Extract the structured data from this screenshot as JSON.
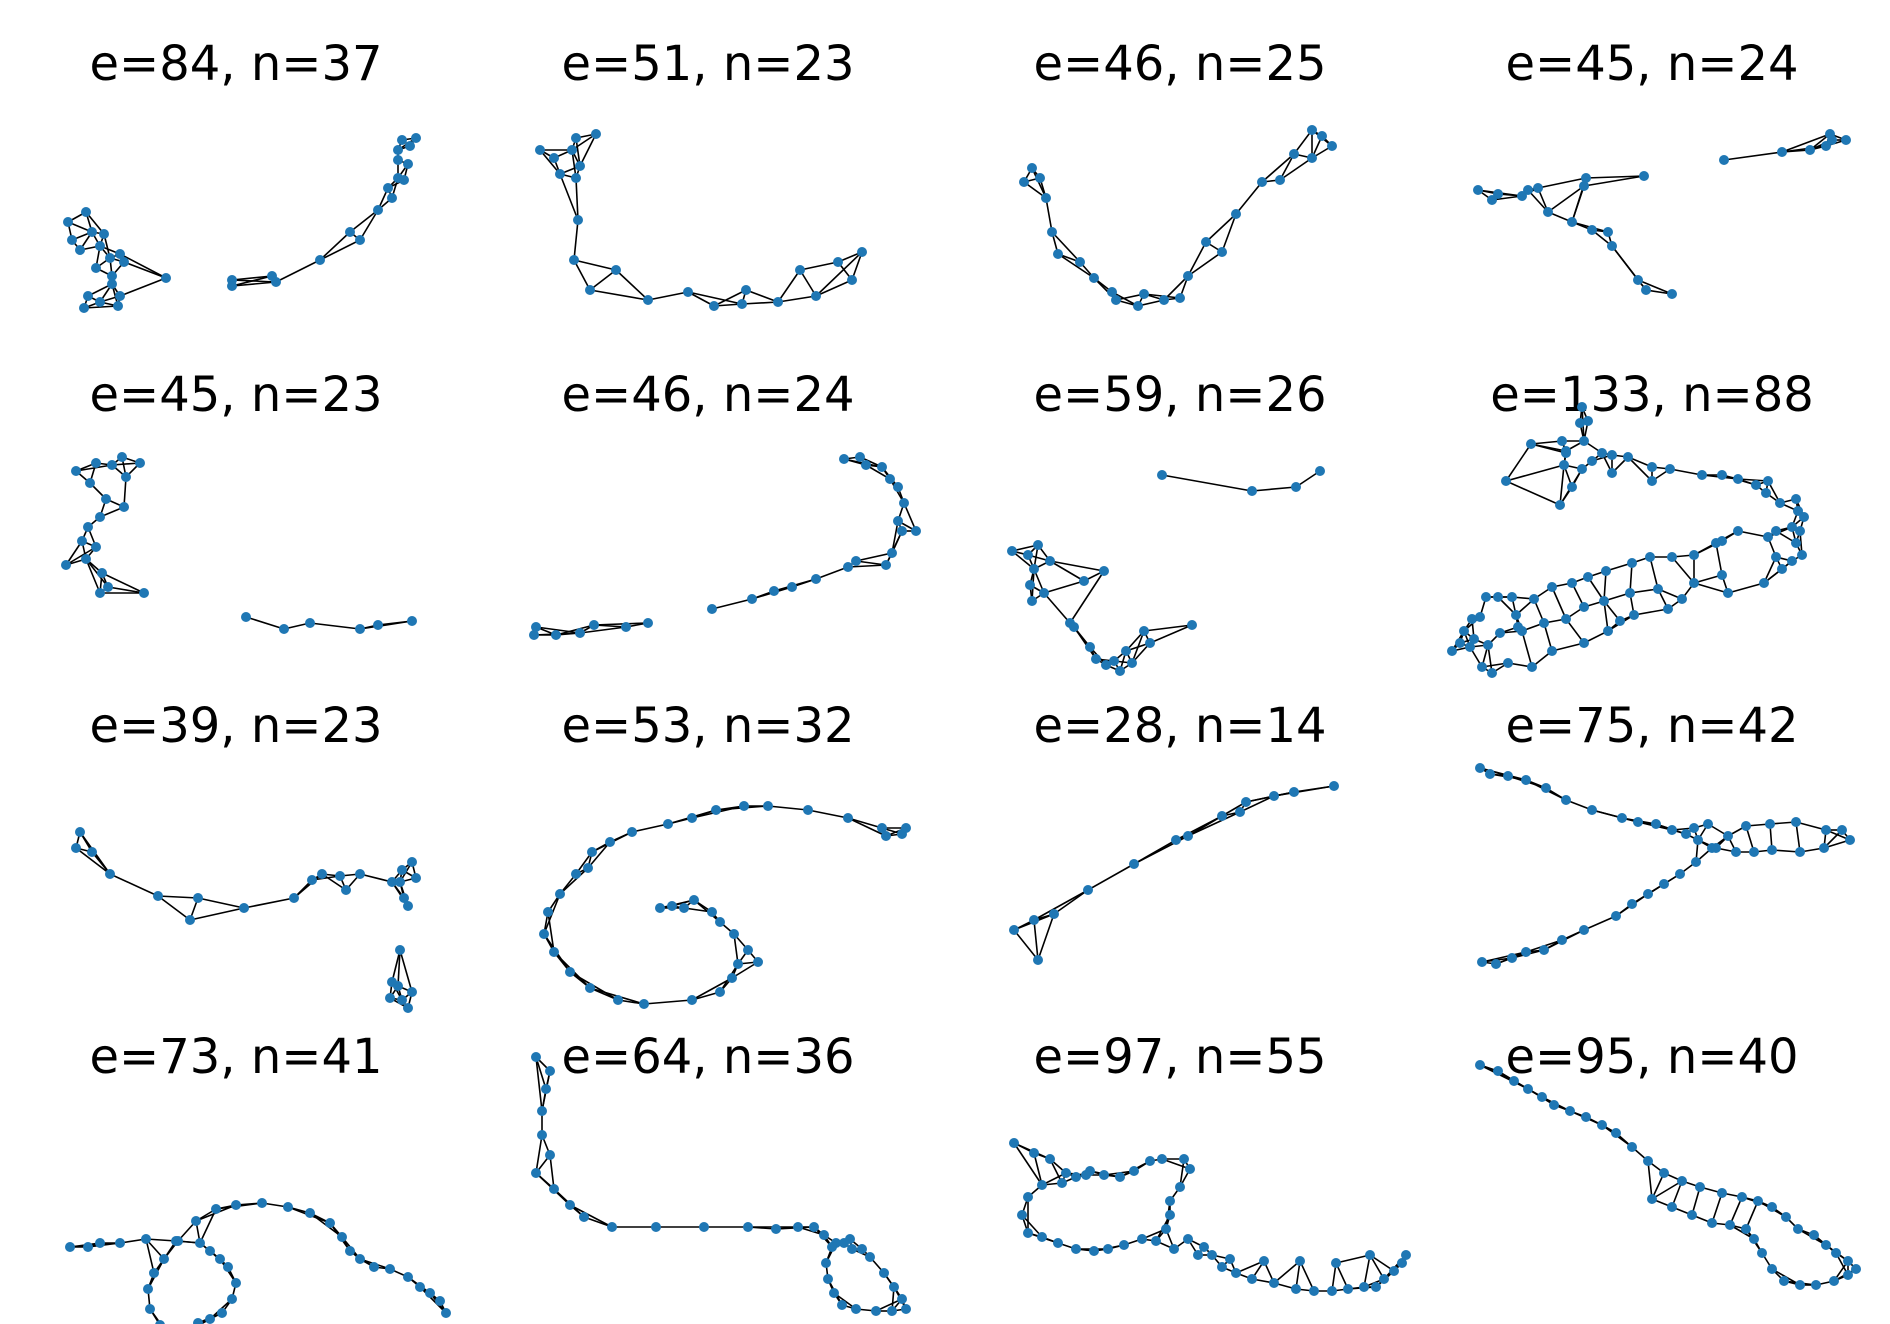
{
  "figure": {
    "colors": {
      "node": "#1f77b4",
      "edge": "#000000",
      "background": "#ffffff"
    },
    "panels": [
      {
        "title": "e=84, n=37"
      },
      {
        "title": "e=51, n=23"
      },
      {
        "title": "e=46, n=25"
      },
      {
        "title": "e=45, n=24"
      },
      {
        "title": "e=45, n=23"
      },
      {
        "title": "e=46, n=24"
      },
      {
        "title": "e=59, n=26"
      },
      {
        "title": "e=133, n=88"
      },
      {
        "title": "e=39, n=23"
      },
      {
        "title": "e=53, n=32"
      },
      {
        "title": "e=28, n=14"
      },
      {
        "title": "e=75, n=42"
      },
      {
        "title": "e=73, n=41"
      },
      {
        "title": "e=64, n=36"
      },
      {
        "title": "e=97, n=55"
      },
      {
        "title": "e=95, n=40"
      }
    ]
  }
}
